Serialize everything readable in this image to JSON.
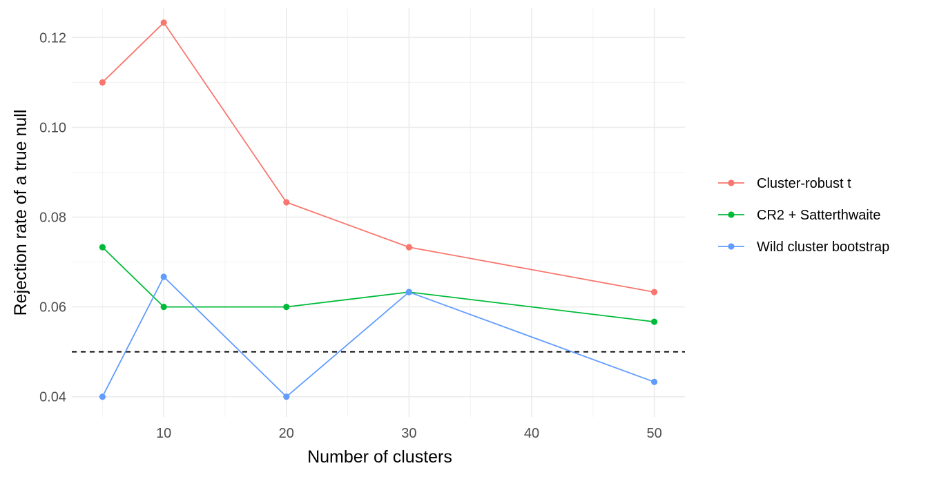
{
  "chart_data": {
    "type": "line",
    "title": "",
    "xlabel": "Number of clusters",
    "ylabel": "Rejection rate of a true null",
    "x": [
      5,
      10,
      20,
      30,
      50
    ],
    "xlim": [
      2.5,
      52.5
    ],
    "ylim": [
      0.0355,
      0.1265
    ],
    "x_ticks": [
      10,
      20,
      30,
      40,
      50
    ],
    "y_ticks": [
      0.04,
      0.06,
      0.08,
      0.1,
      0.12
    ],
    "x_tick_labels": [
      "10",
      "20",
      "30",
      "40",
      "50"
    ],
    "y_tick_labels": [
      "0.04",
      "0.06",
      "0.08",
      "0.10",
      "0.12"
    ],
    "grid": true,
    "legend_position": "right",
    "reference_line": {
      "y": 0.05,
      "style": "dashed",
      "color": "#000000"
    },
    "series": [
      {
        "name": "Cluster-robust t",
        "color": "#F8766D",
        "values": [
          0.11,
          0.1233,
          0.0833,
          0.0733,
          0.0633
        ]
      },
      {
        "name": "CR2 + Satterthwaite",
        "color": "#00BA38",
        "values": [
          0.0733,
          0.06,
          0.06,
          0.0633,
          0.0567
        ]
      },
      {
        "name": "Wild cluster bootstrap",
        "color": "#619CFF",
        "values": [
          0.04,
          0.0667,
          0.04,
          0.0633,
          0.0433
        ]
      }
    ]
  }
}
